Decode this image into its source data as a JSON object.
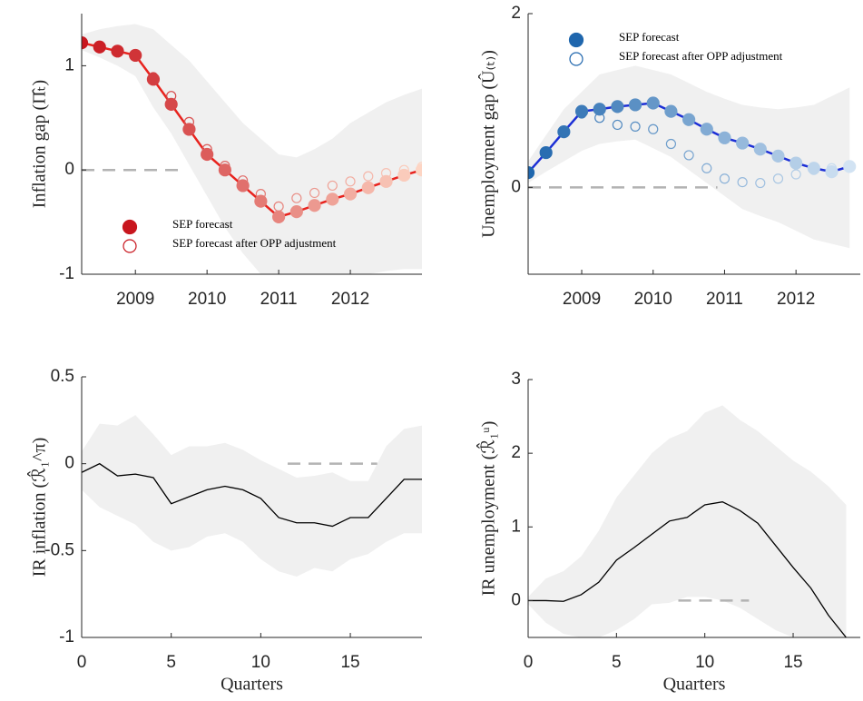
{
  "chart_data": [
    {
      "type": "line",
      "ylabel": "Inflation gap (Π̂ₜ)",
      "x": [
        2008.25,
        2008.5,
        2008.75,
        2009,
        2009.25,
        2009.5,
        2009.75,
        2010,
        2010.25,
        2010.5,
        2010.75,
        2011,
        2011.25,
        2011.5,
        2011.75,
        2012,
        2012.25,
        2012.5,
        2012.75,
        2013
      ],
      "series": [
        {
          "name": "SEP forecast",
          "marker": "filled",
          "line": true,
          "line_color": "#e8231e",
          "color": [
            "#c8161e",
            "#fdd5c4"
          ],
          "values": [
            1.22,
            1.18,
            1.14,
            1.1,
            0.87,
            0.63,
            0.39,
            0.15,
            0.0,
            -0.15,
            -0.3,
            -0.45,
            -0.4,
            -0.34,
            -0.28,
            -0.23,
            -0.17,
            -0.11,
            -0.05,
            0.0
          ]
        },
        {
          "name": "SEP forecast after OPP adjustment",
          "marker": "open",
          "line": false,
          "color": [
            "#c8161e",
            "#fdd5c4"
          ],
          "values": [
            1.22,
            1.18,
            1.15,
            1.11,
            0.89,
            0.71,
            0.46,
            0.2,
            0.04,
            -0.1,
            -0.23,
            -0.35,
            -0.27,
            -0.22,
            -0.15,
            -0.11,
            -0.06,
            -0.03,
            0.0,
            0.03
          ]
        }
      ],
      "band": {
        "color": "#f0f0f0",
        "upper": [
          1.3,
          1.35,
          1.38,
          1.4,
          1.35,
          1.2,
          1.05,
          0.85,
          0.65,
          0.45,
          0.3,
          0.15,
          0.12,
          0.2,
          0.3,
          0.45,
          0.55,
          0.65,
          0.72,
          0.78
        ],
        "lower": [
          1.15,
          1.08,
          1.0,
          0.9,
          0.6,
          0.35,
          0.05,
          -0.25,
          -0.55,
          -0.8,
          -1.0,
          -1.0,
          -1.0,
          -1.0,
          -1.0,
          -1.0,
          -1.0,
          -0.97,
          -0.95,
          -0.95
        ]
      },
      "reference": {
        "x": [
          2008.25,
          2009.6
        ],
        "y": 0
      },
      "xlim": [
        2008.25,
        2013
      ],
      "ylim": [
        -1,
        1.5
      ],
      "xticks": [
        2009,
        2010,
        2011,
        2012
      ],
      "yticks": [
        -1,
        0,
        1
      ],
      "legend": "lower left"
    },
    {
      "type": "line",
      "ylabel": "Unemployment gap (Û₍ₜ₎)",
      "x": [
        2008.25,
        2008.5,
        2008.75,
        2009,
        2009.25,
        2009.5,
        2009.75,
        2010,
        2010.25,
        2010.5,
        2010.75,
        2011,
        2011.25,
        2011.5,
        2011.75,
        2012,
        2012.25,
        2012.5,
        2012.75
      ],
      "series": [
        {
          "name": "SEP forecast",
          "marker": "filled",
          "line": true,
          "line_color": "#1c2fd6",
          "color": [
            "#1f66ad",
            "#d2e3f3"
          ],
          "values": [
            0.17,
            0.4,
            0.64,
            0.875,
            0.9,
            0.93,
            0.95,
            0.97,
            0.875,
            0.78,
            0.67,
            0.57,
            0.51,
            0.44,
            0.36,
            0.28,
            0.22,
            0.18,
            0.24
          ]
        },
        {
          "name": "SEP forecast after OPP adjustment",
          "marker": "open",
          "line": false,
          "color": [
            "#1f66ad",
            "#d2e3f3"
          ],
          "values": [
            0.17,
            0.4,
            0.64,
            0.85,
            0.8,
            0.72,
            0.7,
            0.67,
            0.5,
            0.37,
            0.22,
            0.1,
            0.06,
            0.05,
            0.1,
            0.15,
            0.2,
            0.22,
            0.25
          ]
        }
      ],
      "band": {
        "color": "#f0f0f0",
        "upper": [
          0.3,
          0.6,
          0.9,
          1.1,
          1.3,
          1.35,
          1.4,
          1.35,
          1.3,
          1.2,
          1.1,
          1.02,
          0.95,
          0.92,
          0.9,
          0.92,
          0.95,
          1.05,
          1.15
        ],
        "lower": [
          0.05,
          0.18,
          0.3,
          0.42,
          0.5,
          0.53,
          0.55,
          0.45,
          0.35,
          0.2,
          0.05,
          -0.1,
          -0.25,
          -0.33,
          -0.4,
          -0.5,
          -0.6,
          -0.65,
          -0.7
        ]
      },
      "reference": {
        "x": [
          2008.25,
          2010.9
        ],
        "y": 0
      },
      "xlim": [
        2008.25,
        2012.9
      ],
      "ylim": [
        -1,
        2
      ],
      "xticks": [
        2009,
        2010,
        2011,
        2012
      ],
      "yticks": [
        0,
        2
      ],
      "legend": "upper left"
    },
    {
      "type": "line",
      "ylabel": "IR inflation (ℛ̂₁^π)",
      "xlabel": "Quarters",
      "x": [
        0,
        1,
        2,
        3,
        4,
        5,
        6,
        7,
        8,
        9,
        10,
        11,
        12,
        13,
        14,
        15,
        16,
        17,
        18,
        19
      ],
      "series": [
        {
          "marker": "none",
          "line": true,
          "line_color": "#000000",
          "color": "#000000",
          "values": [
            -0.05,
            0.0,
            -0.07,
            -0.06,
            -0.08,
            -0.23,
            -0.19,
            -0.15,
            -0.13,
            -0.15,
            -0.2,
            -0.31,
            -0.34,
            -0.34,
            -0.36,
            -0.31,
            -0.31,
            -0.2,
            -0.09,
            -0.09
          ]
        }
      ],
      "band": {
        "color": "#f0f0f0",
        "upper": [
          0.07,
          0.23,
          0.22,
          0.28,
          0.17,
          0.05,
          0.1,
          0.1,
          0.12,
          0.08,
          0.02,
          -0.03,
          -0.08,
          -0.07,
          -0.05,
          -0.1,
          -0.1,
          0.1,
          0.2,
          0.22
        ],
        "lower": [
          -0.15,
          -0.25,
          -0.3,
          -0.35,
          -0.45,
          -0.5,
          -0.48,
          -0.42,
          -0.4,
          -0.45,
          -0.55,
          -0.62,
          -0.65,
          -0.6,
          -0.62,
          -0.55,
          -0.52,
          -0.45,
          -0.4,
          -0.4
        ]
      },
      "reference": {
        "x": [
          11.5,
          16.5
        ],
        "y": 0
      },
      "xlim": [
        0,
        19
      ],
      "ylim": [
        -1,
        0.5
      ],
      "xticks": [
        0,
        5,
        10,
        15
      ],
      "yticks": [
        -1,
        -0.5,
        0,
        0.5
      ]
    },
    {
      "type": "line",
      "ylabel": "IR unemployment (ℛ̂₁ᵘ)",
      "xlabel": "Quarters",
      "x": [
        0,
        1,
        2,
        3,
        4,
        5,
        6,
        7,
        8,
        9,
        10,
        11,
        12,
        13,
        14,
        15,
        16,
        17,
        18
      ],
      "series": [
        {
          "marker": "none",
          "line": true,
          "line_color": "#000000",
          "color": "#000000",
          "values": [
            0.0,
            0.0,
            -0.01,
            0.08,
            0.25,
            0.55,
            0.72,
            0.9,
            1.08,
            1.13,
            1.3,
            1.34,
            1.22,
            1.05,
            0.75,
            0.45,
            0.17,
            -0.2,
            -0.5
          ]
        }
      ],
      "band": {
        "color": "#f0f0f0",
        "upper": [
          0.05,
          0.3,
          0.4,
          0.6,
          0.95,
          1.4,
          1.7,
          2.0,
          2.2,
          2.3,
          2.55,
          2.65,
          2.45,
          2.3,
          2.1,
          1.9,
          1.75,
          1.55,
          1.3
        ],
        "lower": [
          -0.05,
          -0.3,
          -0.45,
          -0.5,
          -0.5,
          -0.4,
          -0.25,
          -0.05,
          -0.03,
          0.05,
          0.05,
          0.0,
          -0.1,
          -0.25,
          -0.4,
          -0.5,
          -0.5,
          -0.5,
          -0.5
        ]
      },
      "reference": {
        "x": [
          8.5,
          12.5
        ],
        "y": 0
      },
      "xlim": [
        0,
        18.8
      ],
      "ylim": [
        -0.5,
        3
      ],
      "xticks": [
        0,
        5,
        10,
        15
      ],
      "yticks": [
        0,
        1,
        2,
        3
      ]
    }
  ]
}
